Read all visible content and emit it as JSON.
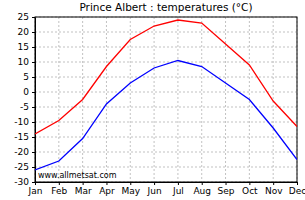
{
  "chart_data": {
    "type": "line",
    "title": "Prince Albert : temperatures (°C)",
    "categories": [
      "Jan",
      "Feb",
      "Mar",
      "Apr",
      "May",
      "Jun",
      "Jul",
      "Aug",
      "Sep",
      "Oct",
      "Nov",
      "Dec"
    ],
    "series": [
      {
        "color": "#ff0000",
        "values": [
          -14,
          -9.5,
          -2.5,
          8.5,
          17.5,
          22,
          24,
          23,
          16,
          9,
          -3,
          -11.5
        ]
      },
      {
        "color": "#0000ff",
        "values": [
          -26,
          -23,
          -15.5,
          -4,
          3,
          8,
          10.5,
          8.5,
          3,
          -2.5,
          -12,
          -22.5
        ]
      }
    ],
    "ylim": [
      -30,
      25
    ],
    "yticks": [
      -30,
      -25,
      -20,
      -15,
      -10,
      -5,
      0,
      5,
      10,
      15,
      20,
      25
    ],
    "grid": true,
    "annotations": [
      "www.allmetsat.com"
    ]
  }
}
